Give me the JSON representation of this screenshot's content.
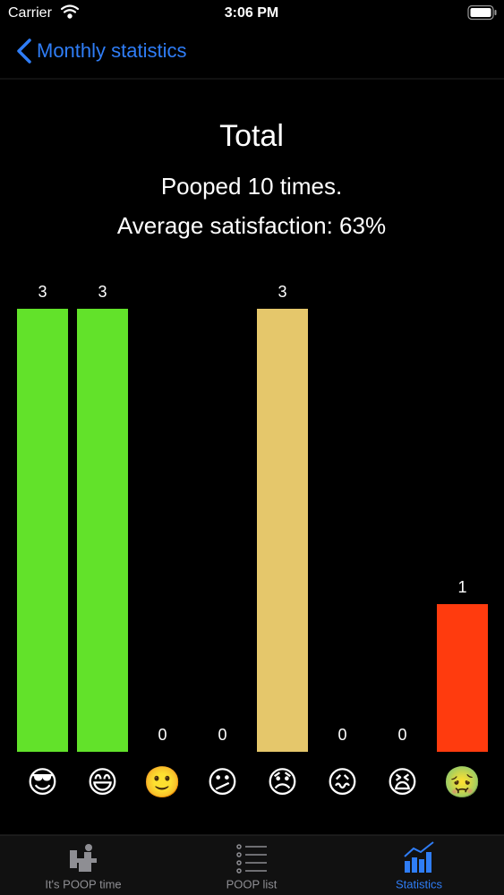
{
  "status_bar": {
    "carrier": "Carrier",
    "time": "3:06 PM"
  },
  "nav_bar": {
    "back_title": "Monthly statistics"
  },
  "header": {
    "title": "Total",
    "count_text": "Pooped 10 times.",
    "satisfaction_text": "Average satisfaction: 63%"
  },
  "chart_data": {
    "type": "bar",
    "categories": [
      "😎",
      "😄",
      "🙂",
      "😕",
      "😞",
      "😖",
      "😫",
      "🤢"
    ],
    "values": [
      3,
      3,
      0,
      0,
      3,
      0,
      0,
      1
    ],
    "colors": [
      "#62e22a",
      "#62e22a",
      "#a8d84a",
      "#d6d05a",
      "#e5c76b",
      "#f0a050",
      "#f77a3a",
      "#ff3b0e"
    ]
  },
  "tab_bar": {
    "tabs": [
      "It's POOP time",
      "POOP list",
      "Statistics"
    ]
  }
}
